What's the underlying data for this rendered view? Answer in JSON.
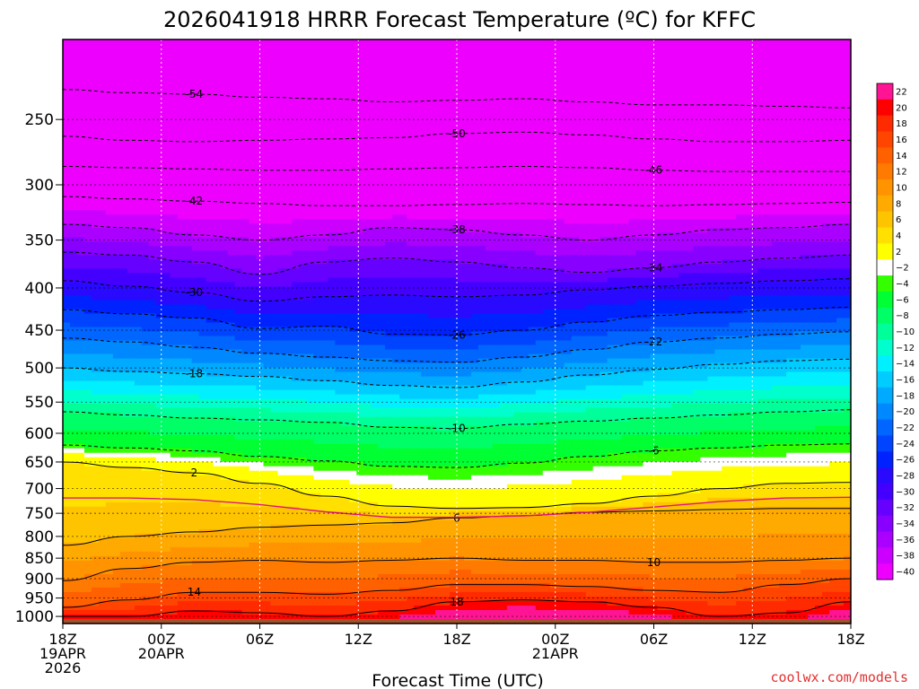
{
  "chart_data": {
    "type": "heatmap",
    "title": "2026041918 HRRR Forecast Temperature (ºC) for KFFC",
    "xlabel": "Forecast Time (UTC)",
    "ylabel": "",
    "credit": "coolwx.com/models",
    "y_scale": "log",
    "y_inverted": true,
    "ylim": [
      1020,
      200
    ],
    "xlim": [
      0,
      48
    ],
    "pressure_ticks": [
      "250",
      "300",
      "350",
      "400",
      "450",
      "500",
      "550",
      "600",
      "650",
      "700",
      "750",
      "800",
      "850",
      "900",
      "950",
      "1000"
    ],
    "time_ticks": [
      {
        "hour": 0,
        "lines": [
          "18Z",
          "19APR",
          "2026"
        ]
      },
      {
        "hour": 6,
        "lines": [
          "00Z",
          "20APR"
        ]
      },
      {
        "hour": 12,
        "lines": [
          "06Z"
        ]
      },
      {
        "hour": 18,
        "lines": [
          "12Z"
        ]
      },
      {
        "hour": 24,
        "lines": [
          "18Z"
        ]
      },
      {
        "hour": 30,
        "lines": [
          "00Z",
          "21APR"
        ]
      },
      {
        "hour": 36,
        "lines": [
          "06Z"
        ]
      },
      {
        "hour": 42,
        "lines": [
          "12Z"
        ]
      },
      {
        "hour": 48,
        "lines": [
          "18Z"
        ]
      }
    ],
    "colorbar": {
      "levels": [
        22,
        20,
        18,
        16,
        14,
        12,
        10,
        8,
        6,
        4,
        2,
        -2,
        -4,
        -6,
        -8,
        -10,
        -12,
        -14,
        -16,
        -18,
        -20,
        -22,
        -24,
        -26,
        -28,
        -30,
        -32,
        -34,
        -36,
        -38,
        -40
      ],
      "colors": [
        "#ff1493",
        "#ff0000",
        "#ff2a00",
        "#ff4500",
        "#ff6000",
        "#ff7a00",
        "#ff9400",
        "#ffaa00",
        "#ffc400",
        "#ffe000",
        "#ffff00",
        "#ffffff",
        "#33ff00",
        "#00ff33",
        "#00ff66",
        "#00ff99",
        "#00ffcc",
        "#00f0ff",
        "#00ccff",
        "#00aaff",
        "#0088ff",
        "#0066ff",
        "#0044ff",
        "#0022ff",
        "#2a0aff",
        "#4400ff",
        "#6600ff",
        "#8800ff",
        "#aa00ff",
        "#cc00ff",
        "#ee00ff"
      ]
    },
    "contours": [
      {
        "label": "-54",
        "p": [
          230,
          232,
          233,
          235,
          236,
          238,
          237,
          236,
          238,
          240,
          240,
          241,
          242
        ]
      },
      {
        "label": "-50",
        "p": [
          262,
          265,
          266,
          265,
          264,
          263,
          260,
          259,
          261,
          264,
          266,
          266,
          265
        ]
      },
      {
        "label": "-46",
        "p": [
          285,
          286,
          287,
          288,
          288,
          287,
          286,
          285,
          286,
          288,
          289,
          289,
          289
        ]
      },
      {
        "label": "-42",
        "p": [
          310,
          312,
          314,
          316,
          318,
          318,
          317,
          316,
          317,
          318,
          317,
          316,
          315
        ]
      },
      {
        "label": "-38",
        "p": [
          335,
          338,
          345,
          350,
          345,
          338,
          340,
          345,
          350,
          345,
          340,
          338,
          335
        ]
      },
      {
        "label": "-34",
        "p": [
          362,
          365,
          372,
          385,
          372,
          368,
          372,
          378,
          383,
          378,
          372,
          368,
          365
        ]
      },
      {
        "label": "-30",
        "p": [
          392,
          398,
          405,
          415,
          410,
          408,
          410,
          408,
          402,
          398,
          395,
          392,
          390
        ]
      },
      {
        "label": "-26",
        "p": [
          425,
          430,
          435,
          448,
          445,
          455,
          456,
          450,
          440,
          432,
          428,
          425,
          422
        ]
      },
      {
        "label": "-22",
        "p": [
          460,
          465,
          472,
          480,
          485,
          490,
          492,
          485,
          475,
          465,
          460,
          455,
          452
        ]
      },
      {
        "label": "-18",
        "p": [
          500,
          505,
          508,
          512,
          518,
          525,
          528,
          520,
          510,
          502,
          495,
          490,
          488
        ]
      },
      {
        "label": "-10",
        "p": [
          565,
          570,
          575,
          578,
          582,
          590,
          592,
          585,
          580,
          575,
          570,
          565,
          562
        ]
      },
      {
        "label": "-6",
        "p": [
          620,
          625,
          630,
          640,
          648,
          658,
          660,
          652,
          640,
          630,
          625,
          620,
          618
        ]
      },
      {
        "label": "2",
        "p": [
          650,
          660,
          670,
          690,
          715,
          735,
          740,
          738,
          730,
          715,
          700,
          690,
          688
        ]
      },
      {
        "label": "6",
        "p": [
          820,
          800,
          790,
          780,
          775,
          770,
          760,
          755,
          748,
          745,
          742,
          740,
          740
        ]
      },
      {
        "label": "10",
        "p": [
          905,
          875,
          860,
          855,
          860,
          855,
          850,
          855,
          855,
          860,
          860,
          855,
          850
        ]
      },
      {
        "label": "14",
        "p": [
          975,
          955,
          935,
          935,
          940,
          930,
          915,
          915,
          920,
          930,
          935,
          915,
          900
        ]
      },
      {
        "label": "18",
        "p": [
          1000,
          1000,
          985,
          990,
          1000,
          985,
          960,
          955,
          960,
          975,
          1000,
          990,
          960
        ]
      }
    ]
  }
}
